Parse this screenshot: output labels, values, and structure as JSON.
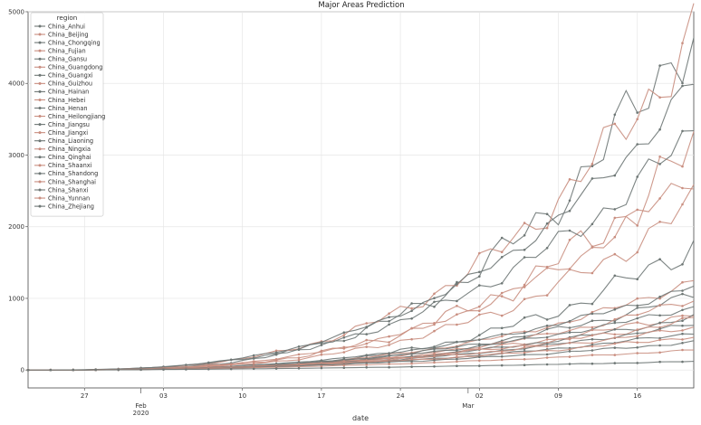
{
  "chart_data": {
    "type": "line",
    "title": "Major Areas Prediction",
    "xlabel": "date",
    "ylabel": "",
    "x_range": [
      "2020-01-22",
      "2020-03-21"
    ],
    "ylim": [
      -250,
      5000
    ],
    "y_ticks": [
      0,
      1000,
      2000,
      3000,
      4000,
      5000
    ],
    "x_ticks": [
      {
        "date": "2020-01-27",
        "label": "27",
        "sub": ""
      },
      {
        "date": "2020-02-03",
        "label": "03",
        "sub": ""
      },
      {
        "date": "2020-02-10",
        "label": "10",
        "sub": ""
      },
      {
        "date": "2020-02-17",
        "label": "17",
        "sub": ""
      },
      {
        "date": "2020-02-24",
        "label": "24",
        "sub": ""
      },
      {
        "date": "2020-03-02",
        "label": "02",
        "sub": ""
      },
      {
        "date": "2020-03-09",
        "label": "09",
        "sub": ""
      },
      {
        "date": "2020-03-16",
        "label": "16",
        "sub": ""
      }
    ],
    "x_major_ticks": [
      {
        "date": "2020-02-01",
        "label": "Feb",
        "sub": "2020"
      },
      {
        "date": "2020-03-01",
        "label": "Mar",
        "sub": ""
      }
    ],
    "grid": true,
    "legend": {
      "title": "region",
      "placement": "top-left"
    },
    "series_colors": [
      "#6e7775",
      "#c98e80"
    ],
    "series": [
      {
        "name": "China_Anhui",
        "end": 4880,
        "p": 3.2,
        "noise": 0.12
      },
      {
        "name": "China_Beijing",
        "end": 4720,
        "p": 3.0,
        "noise": 0.1
      },
      {
        "name": "China_Chongqing",
        "end": 4020,
        "p": 2.8,
        "noise": 0.05
      },
      {
        "name": "China_Fujian",
        "end": 3080,
        "p": 3.1,
        "noise": 0.14
      },
      {
        "name": "China_Gansu",
        "end": 3300,
        "p": 2.7,
        "noise": 0.08
      },
      {
        "name": "China_Guangdong",
        "end": 2750,
        "p": 2.9,
        "noise": 0.07
      },
      {
        "name": "China_Guangxi",
        "end": 1760,
        "p": 3.3,
        "noise": 0.12
      },
      {
        "name": "China_Guizhou",
        "end": 1250,
        "p": 2.9,
        "noise": 0.06
      },
      {
        "name": "China_Hainan",
        "end": 1170,
        "p": 2.6,
        "noise": 0.05
      },
      {
        "name": "China_Hebei",
        "end": 2330,
        "p": 3.0,
        "noise": 0.1
      },
      {
        "name": "China_Henan",
        "end": 1050,
        "p": 2.7,
        "noise": 0.07
      },
      {
        "name": "China_Heilongjiang",
        "end": 990,
        "p": 2.8,
        "noise": 0.06
      },
      {
        "name": "China_Jiangsu",
        "end": 880,
        "p": 2.5,
        "noise": 0.05
      },
      {
        "name": "China_Jiangxi",
        "end": 800,
        "p": 2.6,
        "noise": 0.08
      },
      {
        "name": "China_Liaoning",
        "end": 740,
        "p": 2.5,
        "noise": 0.06
      },
      {
        "name": "China_Ningxia",
        "end": 700,
        "p": 2.4,
        "noise": 0.07
      },
      {
        "name": "China_Qinghai",
        "end": 640,
        "p": 2.5,
        "noise": 0.05
      },
      {
        "name": "China_Shaanxi",
        "end": 590,
        "p": 2.3,
        "noise": 0.06
      },
      {
        "name": "China_Shandong",
        "end": 520,
        "p": 2.4,
        "noise": 0.05
      },
      {
        "name": "China_Shanghai",
        "end": 470,
        "p": 2.2,
        "noise": 0.06
      },
      {
        "name": "China_Shanxi",
        "end": 390,
        "p": 2.1,
        "noise": 0.05
      },
      {
        "name": "China_Yunnan",
        "end": 280,
        "p": 2.0,
        "noise": 0.04
      },
      {
        "name": "China_Zhejiang",
        "end": 120,
        "p": 1.8,
        "noise": 0.04
      }
    ]
  }
}
